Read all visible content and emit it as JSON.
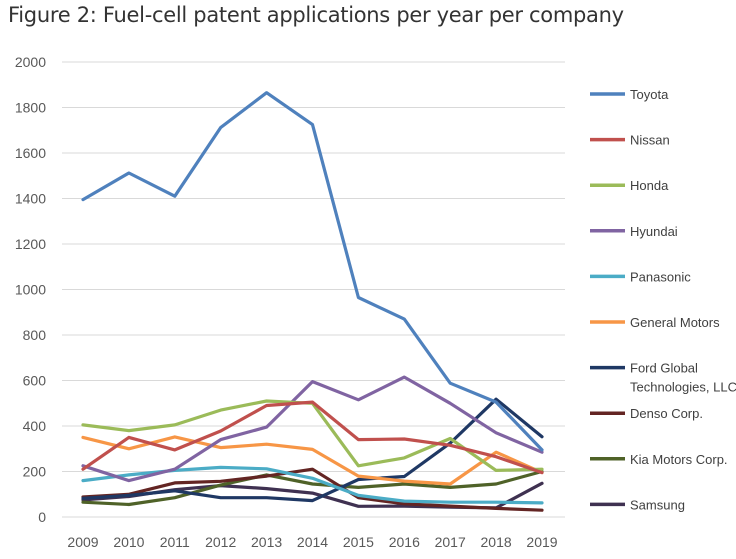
{
  "figure_title": "Figure 2: Fuel-cell patent applications per year per company",
  "chart_data": {
    "type": "line",
    "title": "Figure 2: Fuel-cell patent applications per year per company",
    "xlabel": "",
    "ylabel": "",
    "x": [
      "2009",
      "2010",
      "2011",
      "2012",
      "2013",
      "2014",
      "2015",
      "2016",
      "2017",
      "2018",
      "2019"
    ],
    "ylim": [
      0,
      2000
    ],
    "yticks": [
      "0",
      "200",
      "400",
      "600",
      "800",
      "1000",
      "1200",
      "1400",
      "1600",
      "1800",
      "2000"
    ],
    "grid": "horizontal",
    "legend_position": "right",
    "series": [
      {
        "name": "Toyota",
        "color": "#4f81bd",
        "values": [
          1395,
          1512,
          1410,
          1712,
          1865,
          1725,
          965,
          870,
          588,
          505,
          295
        ]
      },
      {
        "name": "Nissan",
        "color": "#c0504d",
        "values": [
          210,
          350,
          295,
          378,
          490,
          505,
          340,
          343,
          315,
          265,
          195
        ]
      },
      {
        "name": "Honda",
        "color": "#9bbb59",
        "values": [
          405,
          380,
          405,
          470,
          510,
          500,
          225,
          260,
          345,
          205,
          210
        ]
      },
      {
        "name": "Hyundai",
        "color": "#8064a2",
        "values": [
          225,
          160,
          210,
          340,
          395,
          595,
          515,
          615,
          500,
          370,
          285
        ]
      },
      {
        "name": "Panasonic",
        "color": "#4bacc6",
        "values": [
          160,
          185,
          205,
          218,
          212,
          170,
          95,
          70,
          65,
          65,
          62
        ]
      },
      {
        "name": "General Motors",
        "color": "#f79646",
        "values": [
          350,
          300,
          352,
          305,
          320,
          297,
          180,
          158,
          145,
          285,
          195
        ]
      },
      {
        "name": "Ford Global Technologies, LLC",
        "color": "#1f3864",
        "values": [
          82,
          95,
          115,
          85,
          85,
          72,
          165,
          178,
          325,
          518,
          353
        ]
      },
      {
        "name": "Denso Corp.",
        "color": "#632523",
        "values": [
          88,
          100,
          150,
          157,
          180,
          210,
          85,
          58,
          48,
          38,
          30
        ]
      },
      {
        "name": "Kia Motors Corp.",
        "color": "#4f6228",
        "values": [
          65,
          55,
          85,
          140,
          185,
          145,
          130,
          145,
          130,
          145,
          200
        ]
      },
      {
        "name": "Samsung",
        "color": "#3f3151",
        "values": [
          75,
          90,
          120,
          138,
          125,
          105,
          47,
          48,
          43,
          40,
          148
        ]
      }
    ]
  }
}
